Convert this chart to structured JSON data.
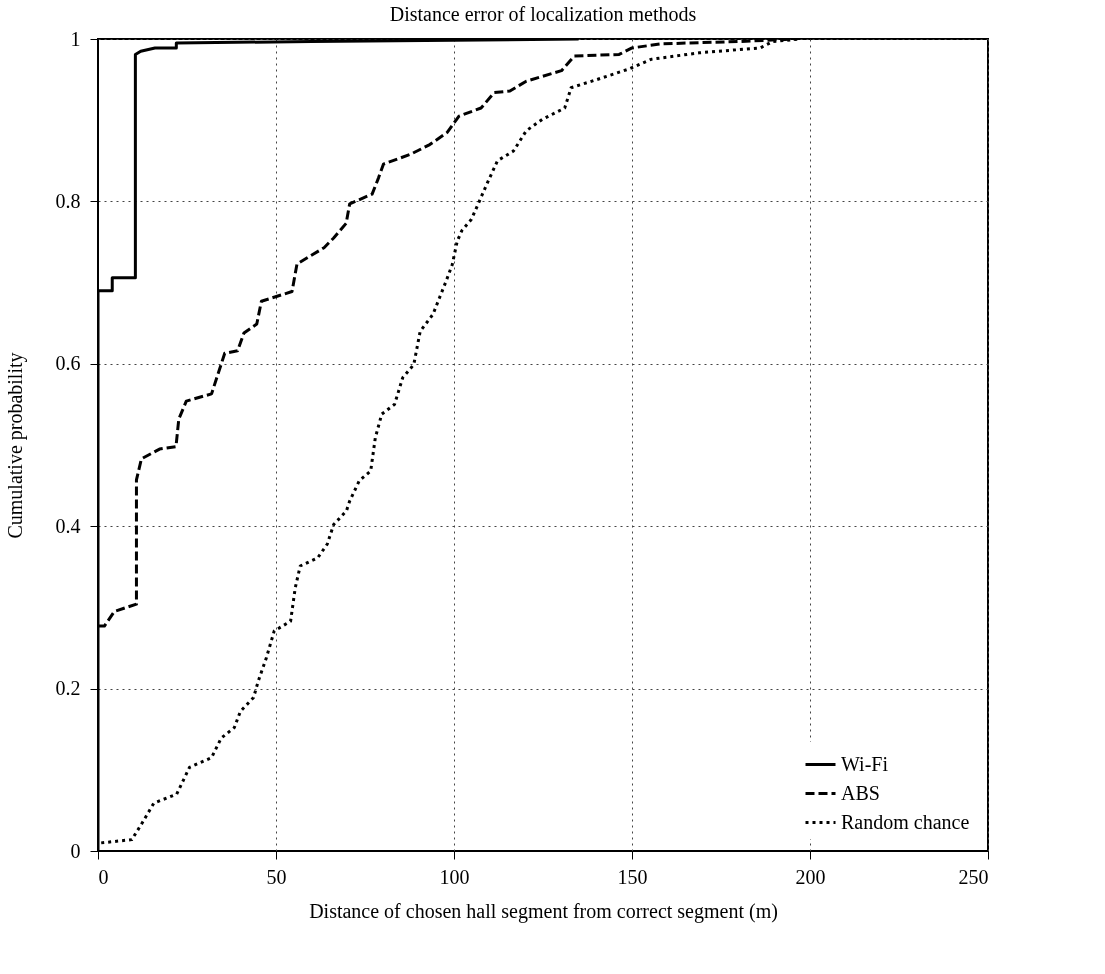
{
  "chart_data": {
    "type": "line",
    "title": "Distance error of localization methods",
    "xlabel": "Distance of chosen hall segment from correct segment (m)",
    "ylabel": "Cumulative probability",
    "xlim": [
      0,
      250
    ],
    "xticks": [
      0,
      50,
      100,
      150,
      200,
      250
    ],
    "ylim": [
      0,
      1
    ],
    "yticks": [
      0,
      0.2,
      0.4,
      0.6,
      0.8,
      1
    ],
    "grid": true,
    "legend": "bottom right",
    "series": [
      {
        "name": "Wi-Fi",
        "color": "#000000",
        "line_style": "solid",
        "x": [
          0,
          0,
          4,
          4,
          10.5,
          10.5,
          12,
          16,
          22,
          22,
          60,
          135
        ],
        "values": [
          0,
          0.69,
          0.69,
          0.706,
          0.706,
          0.981,
          0.985,
          0.989,
          0.989,
          0.995,
          0.997,
          1.0
        ]
      },
      {
        "name": "ABS",
        "color": "#000000",
        "line_style": "dashed",
        "x": [
          0,
          1.8,
          4.6,
          10.8,
          10.8,
          12.2,
          17.3,
          21.9,
          22.7,
          24.8,
          31.9,
          35.6,
          39.2,
          41,
          44.6,
          45.9,
          54.5,
          55.9,
          63.5,
          66.2,
          69.7,
          70.7,
          77,
          78.8,
          80.2,
          87.8,
          93.2,
          98.1,
          101.4,
          107.6,
          111.3,
          115.7,
          120.3,
          130.2,
          133.8,
          146.4,
          150,
          158.1,
          180.5,
          196
        ],
        "values": [
          0.277,
          0.277,
          0.295,
          0.304,
          0.457,
          0.483,
          0.495,
          0.498,
          0.532,
          0.554,
          0.563,
          0.613,
          0.616,
          0.638,
          0.649,
          0.677,
          0.689,
          0.723,
          0.743,
          0.755,
          0.773,
          0.797,
          0.809,
          0.829,
          0.846,
          0.858,
          0.87,
          0.885,
          0.905,
          0.915,
          0.934,
          0.936,
          0.948,
          0.961,
          0.979,
          0.981,
          0.989,
          0.994,
          0.997,
          1.0
        ]
      },
      {
        "name": "Random chance",
        "color": "#000000",
        "line_style": "dotted",
        "x": [
          0.9,
          9.5,
          12.2,
          15.7,
          22.1,
          25.7,
          31.9,
          34.6,
          38.3,
          40,
          43.7,
          45,
          47.3,
          49.5,
          54.1,
          55.4,
          56.8,
          61.7,
          64.4,
          66.2,
          69.8,
          70.7,
          73.4,
          76.6,
          77.9,
          79.7,
          83.3,
          85.6,
          88.7,
          90.5,
          94.1,
          95.9,
          97.8,
          99.5,
          100.9,
          102.2,
          104.9,
          109.5,
          112.2,
          116.7,
          120.3,
          124.8,
          131.1,
          132.9,
          140.1,
          149.1,
          155.4,
          168.9,
          186,
          189.6,
          197.3
        ],
        "values": [
          0.01,
          0.014,
          0.033,
          0.059,
          0.07,
          0.103,
          0.115,
          0.139,
          0.152,
          0.172,
          0.189,
          0.209,
          0.238,
          0.271,
          0.283,
          0.324,
          0.351,
          0.361,
          0.378,
          0.402,
          0.419,
          0.431,
          0.456,
          0.468,
          0.509,
          0.538,
          0.55,
          0.583,
          0.599,
          0.64,
          0.661,
          0.681,
          0.702,
          0.722,
          0.751,
          0.764,
          0.778,
          0.824,
          0.85,
          0.862,
          0.887,
          0.901,
          0.915,
          0.94,
          0.95,
          0.963,
          0.975,
          0.983,
          0.989,
          0.997,
          1.0
        ]
      }
    ]
  }
}
